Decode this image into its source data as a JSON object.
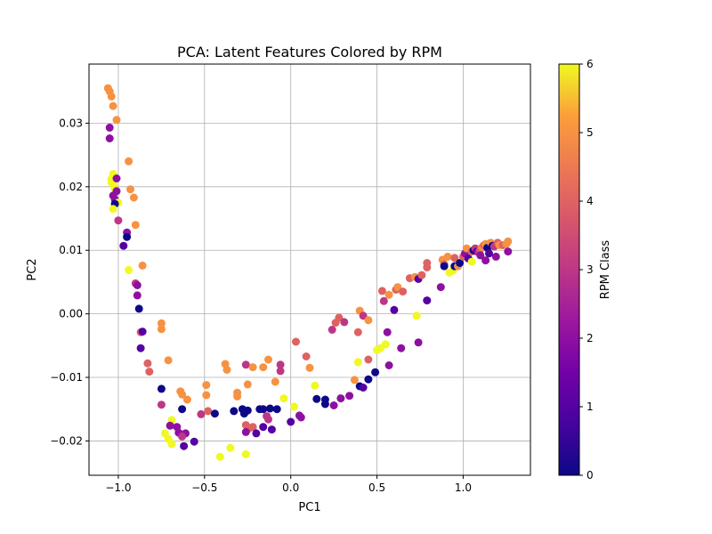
{
  "chart_data": {
    "type": "scatter",
    "title": "PCA: Latent Features Colored by RPM",
    "xlabel": "PC1",
    "ylabel": "PC2",
    "xlim": [
      -1.17,
      1.39
    ],
    "ylim": [
      -0.0254,
      0.0393
    ],
    "xticks": [
      -1.0,
      -0.5,
      0.0,
      0.5,
      1.0
    ],
    "xtick_labels": [
      "−1.0",
      "−0.5",
      "0.0",
      "0.5",
      "1.0"
    ],
    "yticks": [
      -0.02,
      -0.01,
      0.0,
      0.01,
      0.02,
      0.03
    ],
    "ytick_labels": [
      "−0.02",
      "−0.01",
      "0.00",
      "0.01",
      "0.02",
      "0.03"
    ],
    "grid": true,
    "colormap": "plasma",
    "colorbar": {
      "label": "RPM Class",
      "range": [
        0,
        6
      ],
      "ticks": [
        0,
        1,
        2,
        3,
        4,
        5,
        6
      ],
      "tick_labels": [
        "0",
        "1",
        "2",
        "3",
        "4",
        "5",
        "6"
      ]
    },
    "points": [
      [
        -1.06,
        0.0355,
        5
      ],
      [
        -1.05,
        0.035,
        5
      ],
      [
        -1.04,
        0.0342,
        5
      ],
      [
        -1.03,
        0.0327,
        5
      ],
      [
        -1.01,
        0.0305,
        5
      ],
      [
        -1.05,
        0.0293,
        2
      ],
      [
        -1.05,
        0.0276,
        2
      ],
      [
        -1.03,
        0.022,
        6
      ],
      [
        -1.04,
        0.0212,
        6
      ],
      [
        -1.04,
        0.0207,
        6
      ],
      [
        -1.03,
        0.0203,
        6
      ],
      [
        -1.02,
        0.0197,
        6
      ],
      [
        -1.03,
        0.0186,
        2
      ],
      [
        -1.01,
        0.0213,
        2
      ],
      [
        -1.01,
        0.0193,
        2
      ],
      [
        -1.02,
        0.018,
        2
      ],
      [
        -1.0,
        0.0175,
        6
      ],
      [
        -1.02,
        0.0173,
        0
      ],
      [
        -1.03,
        0.0165,
        6
      ],
      [
        -1.0,
        0.0147,
        3
      ],
      [
        -0.94,
        0.024,
        5
      ],
      [
        -0.93,
        0.0196,
        5
      ],
      [
        -0.91,
        0.0183,
        5
      ],
      [
        -0.9,
        0.014,
        5
      ],
      [
        -0.95,
        0.0128,
        2
      ],
      [
        -0.95,
        0.0121,
        0
      ],
      [
        -0.97,
        0.0107,
        1
      ],
      [
        -0.94,
        0.0069,
        6
      ],
      [
        -0.86,
        0.0076,
        5
      ],
      [
        -0.9,
        0.0048,
        3
      ],
      [
        -0.89,
        0.0045,
        2
      ],
      [
        -0.89,
        0.0029,
        2
      ],
      [
        -0.88,
        0.0008,
        0
      ],
      [
        -0.87,
        -0.0029,
        4
      ],
      [
        -0.86,
        -0.0028,
        1
      ],
      [
        -0.87,
        -0.0054,
        1
      ],
      [
        -0.83,
        -0.0078,
        4
      ],
      [
        -0.82,
        -0.0091,
        4
      ],
      [
        -0.75,
        -0.0015,
        5
      ],
      [
        -0.75,
        -0.0024,
        5
      ],
      [
        -0.71,
        -0.0073,
        5
      ],
      [
        -0.75,
        -0.0118,
        0
      ],
      [
        -0.75,
        -0.0143,
        3
      ],
      [
        -0.64,
        -0.0122,
        5
      ],
      [
        -0.63,
        -0.0127,
        5
      ],
      [
        -0.6,
        -0.0135,
        5
      ],
      [
        -0.63,
        -0.015,
        0
      ],
      [
        -0.69,
        -0.0167,
        6
      ],
      [
        -0.7,
        -0.0176,
        2
      ],
      [
        -0.66,
        -0.0178,
        2
      ],
      [
        -0.73,
        -0.0188,
        6
      ],
      [
        -0.71,
        -0.0197,
        6
      ],
      [
        -0.69,
        -0.0205,
        6
      ],
      [
        -0.65,
        -0.0187,
        2
      ],
      [
        -0.61,
        -0.0188,
        2
      ],
      [
        -0.63,
        -0.0193,
        3
      ],
      [
        -0.62,
        -0.0208,
        1
      ],
      [
        -0.56,
        -0.0201,
        1
      ],
      [
        -0.52,
        -0.0158,
        3
      ],
      [
        -0.48,
        -0.0153,
        4
      ],
      [
        -0.44,
        -0.0157,
        0
      ],
      [
        -0.49,
        -0.0112,
        5
      ],
      [
        -0.49,
        -0.0128,
        5
      ],
      [
        -0.41,
        -0.0225,
        6
      ],
      [
        -0.35,
        -0.0211,
        6
      ],
      [
        -0.26,
        -0.0221,
        6
      ],
      [
        -0.38,
        -0.0079,
        5
      ],
      [
        -0.37,
        -0.0088,
        5
      ],
      [
        -0.31,
        -0.0124,
        5
      ],
      [
        -0.31,
        -0.013,
        5
      ],
      [
        -0.26,
        -0.008,
        3
      ],
      [
        -0.25,
        -0.0111,
        5
      ],
      [
        -0.22,
        -0.0084,
        5
      ],
      [
        -0.16,
        -0.0084,
        5
      ],
      [
        -0.13,
        -0.0072,
        5
      ],
      [
        -0.09,
        -0.0107,
        5
      ],
      [
        -0.33,
        -0.0153,
        0
      ],
      [
        -0.28,
        -0.015,
        0
      ],
      [
        -0.27,
        -0.0157,
        0
      ],
      [
        -0.25,
        -0.0152,
        0
      ],
      [
        -0.26,
        -0.0175,
        4
      ],
      [
        -0.24,
        -0.018,
        4
      ],
      [
        -0.22,
        -0.0178,
        4
      ],
      [
        -0.26,
        -0.0186,
        2
      ],
      [
        -0.2,
        -0.0188,
        1
      ],
      [
        -0.18,
        -0.015,
        0
      ],
      [
        -0.16,
        -0.015,
        0
      ],
      [
        -0.12,
        -0.0149,
        0
      ],
      [
        -0.08,
        -0.015,
        0
      ],
      [
        -0.14,
        -0.0161,
        3
      ],
      [
        -0.13,
        -0.0166,
        3
      ],
      [
        -0.16,
        -0.0178,
        1
      ],
      [
        -0.11,
        -0.0182,
        1
      ],
      [
        -0.06,
        -0.008,
        3
      ],
      [
        -0.06,
        -0.009,
        3
      ],
      [
        -0.04,
        -0.0133,
        6
      ],
      [
        0.03,
        -0.0044,
        4
      ],
      [
        0.09,
        -0.0067,
        4
      ],
      [
        0.11,
        -0.0085,
        5
      ],
      [
        0.02,
        -0.0146,
        6
      ],
      [
        0.05,
        -0.016,
        2
      ],
      [
        0.06,
        -0.0163,
        2
      ],
      [
        0.0,
        -0.017,
        1
      ],
      [
        0.14,
        -0.0113,
        6
      ],
      [
        0.15,
        -0.0134,
        0
      ],
      [
        0.2,
        -0.0135,
        0
      ],
      [
        0.2,
        -0.0142,
        0
      ],
      [
        0.25,
        -0.0144,
        2
      ],
      [
        0.29,
        -0.0133,
        2
      ],
      [
        0.34,
        -0.0129,
        2
      ],
      [
        0.37,
        -0.0104,
        5
      ],
      [
        0.39,
        -0.0076,
        6
      ],
      [
        0.4,
        -0.0114,
        0
      ],
      [
        0.42,
        -0.0116,
        1
      ],
      [
        0.45,
        -0.0103,
        0
      ],
      [
        0.49,
        -0.0092,
        0
      ],
      [
        0.45,
        -0.0072,
        4
      ],
      [
        0.5,
        -0.0057,
        6
      ],
      [
        0.52,
        -0.0054,
        6
      ],
      [
        0.55,
        -0.0048,
        6
      ],
      [
        0.56,
        -0.0029,
        2
      ],
      [
        0.57,
        -0.0081,
        2
      ],
      [
        0.64,
        -0.0054,
        2
      ],
      [
        0.74,
        -0.0045,
        2
      ],
      [
        0.73,
        -0.0003,
        6
      ],
      [
        0.6,
        0.0006,
        1
      ],
      [
        0.4,
        0.0005,
        5
      ],
      [
        0.42,
        -0.0003,
        3
      ],
      [
        0.45,
        -0.001,
        5
      ],
      [
        0.39,
        -0.0029,
        4
      ],
      [
        0.24,
        -0.0025,
        3
      ],
      [
        0.26,
        -0.0014,
        4
      ],
      [
        0.28,
        -0.0006,
        4
      ],
      [
        0.31,
        -0.0013,
        3
      ],
      [
        0.53,
        0.0036,
        4
      ],
      [
        0.54,
        0.002,
        3
      ],
      [
        0.57,
        0.003,
        5
      ],
      [
        0.61,
        0.0038,
        4
      ],
      [
        0.62,
        0.0042,
        5
      ],
      [
        0.65,
        0.0035,
        4
      ],
      [
        0.69,
        0.0056,
        4
      ],
      [
        0.72,
        0.0058,
        5
      ],
      [
        0.74,
        0.0055,
        1
      ],
      [
        0.76,
        0.0061,
        4
      ],
      [
        0.79,
        0.0021,
        1
      ],
      [
        0.79,
        0.0073,
        4
      ],
      [
        0.79,
        0.008,
        4
      ],
      [
        0.87,
        0.0042,
        2
      ],
      [
        0.88,
        0.0085,
        5
      ],
      [
        0.89,
        0.0078,
        4
      ],
      [
        0.89,
        0.0075,
        0
      ],
      [
        0.91,
        0.009,
        5
      ],
      [
        0.92,
        0.0065,
        6
      ],
      [
        0.94,
        0.0068,
        6
      ],
      [
        0.95,
        0.0088,
        4
      ],
      [
        0.95,
        0.0075,
        0
      ],
      [
        0.97,
        0.0075,
        5
      ],
      [
        0.98,
        0.008,
        0
      ],
      [
        1.0,
        0.009,
        4
      ],
      [
        1.01,
        0.0095,
        2
      ],
      [
        1.02,
        0.0103,
        5
      ],
      [
        1.03,
        0.0087,
        1
      ],
      [
        1.05,
        0.0082,
        6
      ],
      [
        1.05,
        0.0098,
        4
      ],
      [
        1.06,
        0.01,
        0
      ],
      [
        1.07,
        0.0103,
        3
      ],
      [
        1.08,
        0.0098,
        1
      ],
      [
        1.09,
        0.0097,
        3
      ],
      [
        1.1,
        0.0102,
        4
      ],
      [
        1.11,
        0.0105,
        5
      ],
      [
        1.12,
        0.0108,
        4
      ],
      [
        1.13,
        0.011,
        5
      ],
      [
        1.13,
        0.0084,
        2
      ],
      [
        1.14,
        0.0104,
        0
      ],
      [
        1.15,
        0.0095,
        1
      ],
      [
        1.16,
        0.0112,
        5
      ],
      [
        1.17,
        0.0107,
        0
      ],
      [
        1.18,
        0.0106,
        3
      ],
      [
        1.19,
        0.009,
        2
      ],
      [
        1.2,
        0.0112,
        4
      ],
      [
        1.21,
        0.0108,
        5
      ],
      [
        1.23,
        0.0108,
        4
      ],
      [
        1.25,
        0.011,
        5
      ],
      [
        1.26,
        0.0114,
        5
      ],
      [
        1.26,
        0.0098,
        2
      ],
      [
        1.1,
        0.0092,
        2
      ]
    ]
  }
}
